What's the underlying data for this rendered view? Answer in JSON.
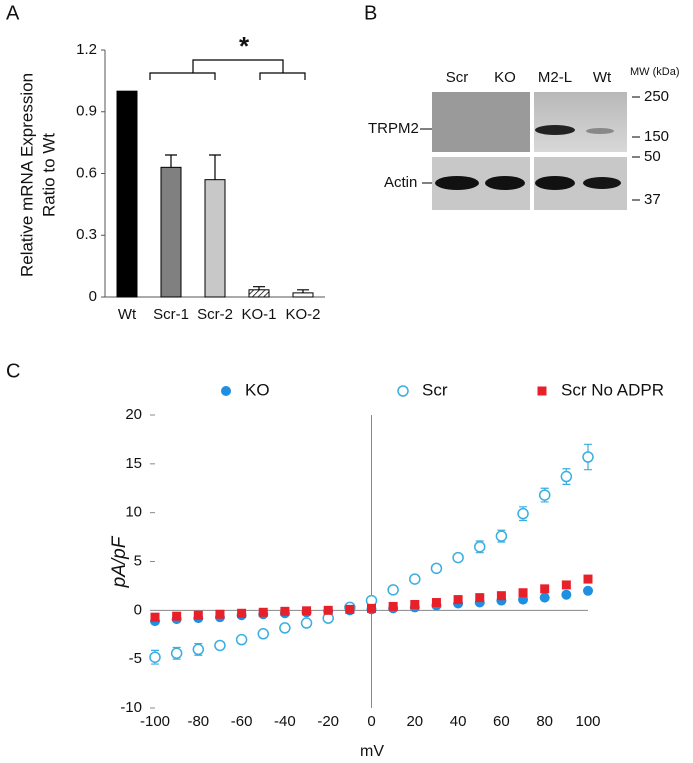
{
  "chart_data": [
    {
      "type": "bar",
      "panel": "A",
      "ylabel": [
        "Relative mRNA Expression",
        "Ratio to Wt"
      ],
      "categories": [
        "Wt",
        "Scr-1",
        "Scr-2",
        "KO-1",
        "KO-2"
      ],
      "values": [
        1.0,
        0.63,
        0.57,
        0.035,
        0.02
      ],
      "errors": [
        0,
        0.06,
        0.12,
        0.015,
        0.015
      ],
      "colors": [
        "#000000",
        "#808080",
        "#c8c8c8",
        "#ffffff",
        "#ffffff"
      ],
      "patterns": [
        null,
        null,
        null,
        "hatch",
        null
      ],
      "ylim": [
        0,
        1.2
      ],
      "yticks": [
        0,
        0.3,
        0.6,
        0.9,
        1.2
      ],
      "annotation": "*"
    },
    {
      "type": "scatter",
      "panel": "C",
      "xlabel": "mV",
      "ylabel": "pA/pF",
      "x": [
        -100,
        -90,
        -80,
        -70,
        -60,
        -50,
        -40,
        -30,
        -20,
        -10,
        0,
        10,
        20,
        30,
        40,
        50,
        60,
        70,
        80,
        90,
        100
      ],
      "series": [
        {
          "name": "KO",
          "color": "#1e8fe1",
          "marker": "circle",
          "values": [
            -1.1,
            -0.9,
            -0.8,
            -0.7,
            -0.5,
            -0.4,
            -0.3,
            -0.2,
            -0.1,
            0,
            0.1,
            0.2,
            0.3,
            0.5,
            0.7,
            0.8,
            1.0,
            1.1,
            1.3,
            1.6,
            2.0
          ]
        },
        {
          "name": "Scr",
          "color": "#3aaee0",
          "marker": "open-circle",
          "values": [
            -4.8,
            -4.4,
            -4.0,
            -3.6,
            -3.0,
            -2.4,
            -1.8,
            -1.3,
            -0.8,
            0.3,
            1.0,
            2.1,
            3.2,
            4.3,
            5.4,
            6.5,
            7.6,
            9.9,
            11.8,
            13.7,
            15.7
          ],
          "errors": [
            0.7,
            0.6,
            0.6,
            0.3,
            0.3,
            0.3,
            0.3,
            0.3,
            0.3,
            0.3,
            0.3,
            0.3,
            0.3,
            0.3,
            0.3,
            0.6,
            0.6,
            0.7,
            0.7,
            0.8,
            1.3
          ]
        },
        {
          "name": "Scr No ADPR",
          "color": "#e8202a",
          "marker": "square",
          "values": [
            -0.7,
            -0.6,
            -0.5,
            -0.4,
            -0.3,
            -0.2,
            -0.1,
            -0.05,
            0,
            0.1,
            0.2,
            0.4,
            0.6,
            0.8,
            1.1,
            1.3,
            1.5,
            1.8,
            2.2,
            2.6,
            3.2
          ]
        }
      ],
      "xlim": [
        -100,
        100
      ],
      "xticks": [
        -100,
        -80,
        -60,
        -40,
        -20,
        0,
        20,
        40,
        60,
        80,
        100
      ],
      "ylim": [
        -10,
        20
      ],
      "yticks": [
        -10,
        -5,
        0,
        5,
        10,
        15,
        20
      ]
    }
  ],
  "blot": {
    "panel": "B",
    "lanes": [
      "Scr",
      "KO",
      "M2-L",
      "Wt"
    ],
    "mw_label": "MW (kDa)",
    "markers": [
      250,
      150,
      50,
      37
    ],
    "rows": [
      "TRPM2",
      "Actin"
    ]
  }
}
